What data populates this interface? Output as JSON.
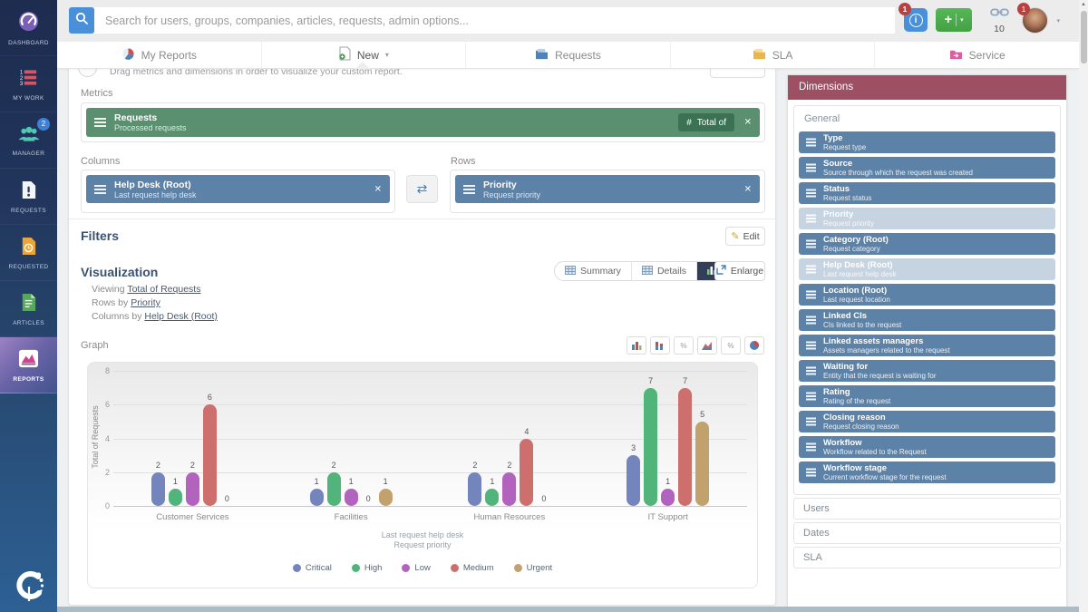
{
  "topbar": {
    "search_placeholder": "Search for users, groups, companies, articles, requests, admin options...",
    "info_badge": "1",
    "link_count": "10",
    "avatar_badge": "1"
  },
  "sidebar": {
    "items": [
      {
        "label": "DASHBOARD"
      },
      {
        "label": "MY WORK"
      },
      {
        "label": "MANAGER",
        "badge": "2"
      },
      {
        "label": "REQUESTS"
      },
      {
        "label": "REQUESTED"
      },
      {
        "label": "ARTICLES"
      },
      {
        "label": "REPORTS"
      }
    ]
  },
  "tabs": [
    {
      "label": "My Reports"
    },
    {
      "label": "New"
    },
    {
      "label": "Requests"
    },
    {
      "label": "SLA"
    },
    {
      "label": "Service"
    }
  ],
  "builder": {
    "hint": "Drag metrics and dimensions in order to visualize your custom report.",
    "metrics_label": "Metrics",
    "metric": {
      "title": "Requests",
      "subtitle": "Processed requests",
      "chip_hash": "#",
      "chip_label": "Total of"
    },
    "columns_label": "Columns",
    "column": {
      "title": "Help Desk (Root)",
      "subtitle": "Last request help desk"
    },
    "rows_label": "Rows",
    "row": {
      "title": "Priority",
      "subtitle": "Request priority"
    },
    "filters_label": "Filters",
    "edit_label": "Edit"
  },
  "visualization": {
    "title": "Visualization",
    "buttons": {
      "summary": "Summary",
      "details": "Details",
      "graph": "Graph",
      "enlarge": "Enlarge"
    },
    "viewing_prefix": "Viewing",
    "viewing_link": "Total of Requests",
    "rows_prefix": "Rows by",
    "rows_link": "Priority",
    "columns_prefix": "Columns by",
    "columns_link": "Help Desk (Root)",
    "graph_label": "Graph"
  },
  "chart_type_buttons": [
    "bar-chart",
    "stacked-bar-chart",
    "percent-stacked-chart",
    "area-chart",
    "percent-area-chart",
    "pie-chart"
  ],
  "chart_data": {
    "type": "bar",
    "categories": [
      "Customer Services",
      "Facilities",
      "Human Resources",
      "IT Support"
    ],
    "series": [
      {
        "name": "Critical",
        "color": "#7484bd",
        "values": [
          2,
          1,
          2,
          3
        ]
      },
      {
        "name": "High",
        "color": "#50b47b",
        "values": [
          1,
          2,
          1,
          7
        ]
      },
      {
        "name": "Low",
        "color": "#b263bd",
        "values": [
          2,
          1,
          2,
          1
        ]
      },
      {
        "name": "Medium",
        "color": "#cc6f6d",
        "values": [
          6,
          0,
          4,
          7
        ]
      },
      {
        "name": "Urgent",
        "color": "#c1a16c",
        "values": [
          0,
          1,
          0,
          5
        ]
      }
    ],
    "ylabel": "Total of Requests",
    "xlabel_line1": "Last request help desk",
    "xlabel_line2": "Request priority",
    "ylim": [
      0,
      8
    ],
    "yticks": [
      0,
      2,
      4,
      6,
      8
    ],
    "grid": true,
    "legend_position": "bottom"
  },
  "dimensions": {
    "title": "Dimensions",
    "general_label": "General",
    "items": [
      {
        "title": "Type",
        "subtitle": "Request type"
      },
      {
        "title": "Source",
        "subtitle": "Source through which the request was created"
      },
      {
        "title": "Status",
        "subtitle": "Request status"
      },
      {
        "title": "Priority",
        "subtitle": "Request priority",
        "faded": true
      },
      {
        "title": "Category (Root)",
        "subtitle": "Request category"
      },
      {
        "title": "Help Desk (Root)",
        "subtitle": "Last request help desk",
        "faded": true
      },
      {
        "title": "Location (Root)",
        "subtitle": "Last request location"
      },
      {
        "title": "Linked CIs",
        "subtitle": "CIs linked to the request"
      },
      {
        "title": "Linked assets managers",
        "subtitle": "Assets managers related to the request"
      },
      {
        "title": "Waiting for",
        "subtitle": "Entity that the request is waiting for"
      },
      {
        "title": "Rating",
        "subtitle": "Rating of the request"
      },
      {
        "title": "Closing reason",
        "subtitle": "Request closing reason"
      },
      {
        "title": "Workflow",
        "subtitle": "Workflow related to the Request"
      },
      {
        "title": "Workflow stage",
        "subtitle": "Current workflow stage for the request"
      }
    ],
    "collapsed_groups": [
      "Users",
      "Dates",
      "SLA"
    ]
  },
  "glyphs": {
    "plus": "+",
    "caret_down": "▾",
    "close": "✕",
    "swap": "⇄",
    "pencil": "✎",
    "percent": "%",
    "info": "i",
    "scroll_up": "▲"
  },
  "colors": {
    "accent_blue": "#4a90d9",
    "metric_green": "#5a9070",
    "dimension_blue": "#5d82a8",
    "dimensions_header_maroon": "#9d4f63",
    "active_nav_purple": "#7a5fb5",
    "badge_red": "#b8413f"
  }
}
